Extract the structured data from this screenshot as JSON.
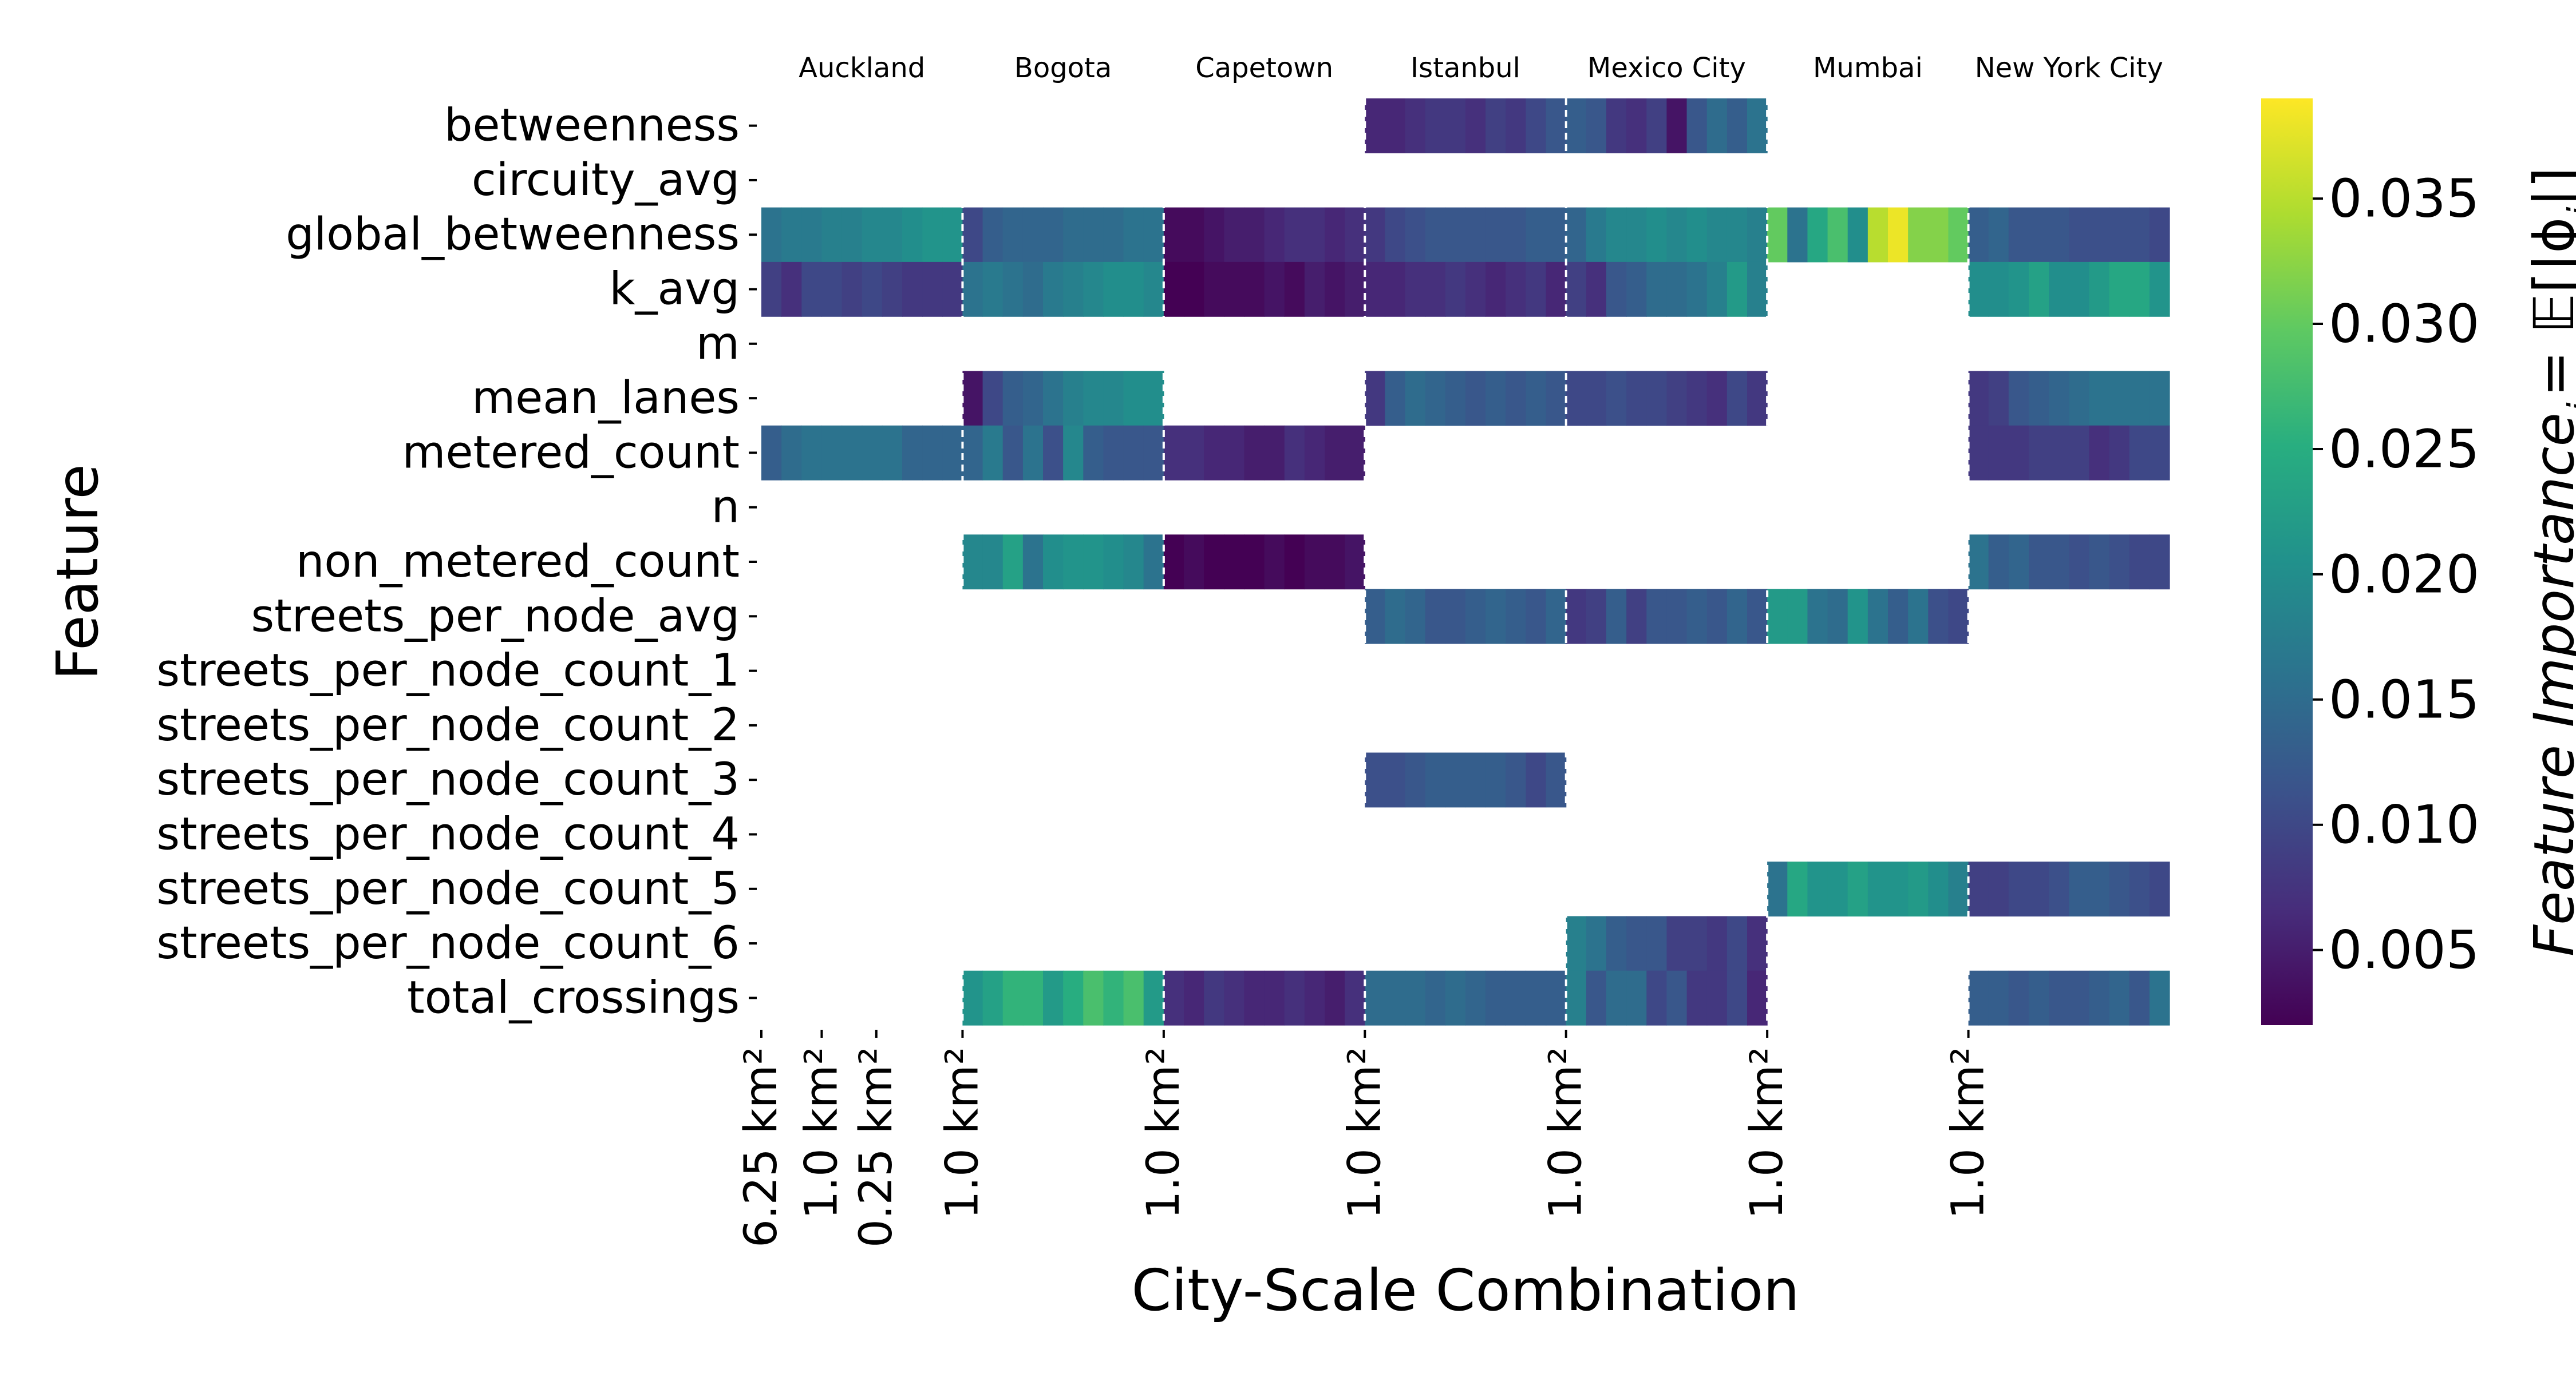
{
  "chart_data": {
    "type": "heatmap",
    "xlabel": "City-Scale Combination",
    "ylabel": "Feature",
    "colorbar_label": "Feature Importance",
    "colorbar_label_sub": "j",
    "colorbar_label_rhs": "= 𝔼[|ϕ",
    "colorbar_label_rhs_sub": "j",
    "colorbar_label_rhs_end": "|]",
    "colormap": "viridis",
    "vmin": 0.002,
    "vmax": 0.039,
    "colorbar_ticks": [
      "0.005",
      "0.010",
      "0.015",
      "0.020",
      "0.025",
      "0.030",
      "0.035"
    ],
    "cities": [
      "Auckland",
      "Bogota",
      "Capetown",
      "Istanbul",
      "Mexico City",
      "Mumbai",
      "New York City"
    ],
    "x_tick_labels": [
      "6.25 km²",
      "1.0 km²",
      "0.25 km²",
      "1.0 km²",
      "1.0 km²",
      "1.0 km²",
      "1.0 km²",
      "1.0 km²",
      "1.0 km²"
    ],
    "features": [
      "betweenness",
      "circuity_avg",
      "global_betweenness",
      "k_avg",
      "m",
      "mean_lanes",
      "metered_count",
      "n",
      "non_metered_count",
      "streets_per_node_avg",
      "streets_per_node_count_1",
      "streets_per_node_count_2",
      "streets_per_node_count_3",
      "streets_per_node_count_4",
      "streets_per_node_count_5",
      "streets_per_node_count_6",
      "total_crossings"
    ],
    "columns_per_city": 10,
    "missing_value": null,
    "values": {
      "betweenness": [
        null,
        null,
        null,
        null,
        null,
        null,
        null,
        null,
        null,
        null,
        null,
        null,
        null,
        null,
        null,
        null,
        null,
        null,
        null,
        null,
        null,
        null,
        null,
        null,
        null,
        null,
        null,
        null,
        null,
        null,
        0.006,
        0.006,
        0.007,
        0.008,
        0.008,
        0.007,
        0.009,
        0.008,
        0.01,
        0.012,
        0.013,
        0.012,
        0.008,
        0.007,
        0.009,
        0.004,
        0.012,
        0.015,
        0.013,
        0.016,
        null,
        null,
        null,
        null,
        null,
        null,
        null,
        null,
        null,
        null,
        null,
        null,
        null,
        null,
        null,
        null,
        null,
        null,
        null,
        null
      ],
      "circuity_avg": [
        null,
        null,
        null,
        null,
        null,
        null,
        null,
        null,
        null,
        null,
        null,
        null,
        null,
        null,
        null,
        null,
        null,
        null,
        null,
        null,
        null,
        null,
        null,
        null,
        null,
        null,
        null,
        null,
        null,
        null,
        null,
        null,
        null,
        null,
        null,
        null,
        null,
        null,
        null,
        null,
        null,
        null,
        null,
        null,
        null,
        null,
        null,
        null,
        null,
        null,
        null,
        null,
        null,
        null,
        null,
        null,
        null,
        null,
        null,
        null,
        null,
        null,
        null,
        null,
        null,
        null,
        null,
        null,
        null,
        null
      ],
      "global_betweenness": [
        0.016,
        0.017,
        0.017,
        0.018,
        0.018,
        0.019,
        0.019,
        0.02,
        0.021,
        0.021,
        0.01,
        0.013,
        0.014,
        0.014,
        0.014,
        0.015,
        0.015,
        0.015,
        0.016,
        0.016,
        0.003,
        0.003,
        0.004,
        0.005,
        0.005,
        0.006,
        0.007,
        0.007,
        0.006,
        0.007,
        0.008,
        0.01,
        0.011,
        0.012,
        0.012,
        0.012,
        0.012,
        0.012,
        0.013,
        0.013,
        0.014,
        0.017,
        0.019,
        0.019,
        0.02,
        0.019,
        0.02,
        0.019,
        0.019,
        0.018,
        0.03,
        0.016,
        0.024,
        0.028,
        0.02,
        0.035,
        0.038,
        0.032,
        0.032,
        0.03,
        0.013,
        0.014,
        0.012,
        0.012,
        0.012,
        0.011,
        0.011,
        0.011,
        0.011,
        0.01
      ],
      "k_avg": [
        0.009,
        0.007,
        0.01,
        0.01,
        0.009,
        0.01,
        0.009,
        0.008,
        0.008,
        0.008,
        0.016,
        0.017,
        0.016,
        0.015,
        0.017,
        0.018,
        0.019,
        0.02,
        0.02,
        0.019,
        0.002,
        0.002,
        0.003,
        0.003,
        0.003,
        0.004,
        0.003,
        0.005,
        0.004,
        0.005,
        0.006,
        0.006,
        0.007,
        0.007,
        0.008,
        0.007,
        0.006,
        0.007,
        0.008,
        0.006,
        0.009,
        0.007,
        0.012,
        0.013,
        0.015,
        0.015,
        0.016,
        0.018,
        0.022,
        0.018,
        null,
        null,
        null,
        null,
        null,
        null,
        null,
        null,
        null,
        null,
        0.02,
        0.02,
        0.021,
        0.023,
        0.02,
        0.02,
        0.022,
        0.024,
        0.024,
        0.021
      ],
      "m": [
        null,
        null,
        null,
        null,
        null,
        null,
        null,
        null,
        null,
        null,
        null,
        null,
        null,
        null,
        null,
        null,
        null,
        null,
        null,
        null,
        null,
        null,
        null,
        null,
        null,
        null,
        null,
        null,
        null,
        null,
        null,
        null,
        null,
        null,
        null,
        null,
        null,
        null,
        null,
        null,
        null,
        null,
        null,
        null,
        null,
        null,
        null,
        null,
        null,
        null,
        null,
        null,
        null,
        null,
        null,
        null,
        null,
        null,
        null,
        null,
        null,
        null,
        null,
        null,
        null,
        null,
        null,
        null,
        null,
        null
      ],
      "mean_lanes": [
        null,
        null,
        null,
        null,
        null,
        null,
        null,
        null,
        null,
        null,
        0.004,
        0.01,
        0.013,
        0.014,
        0.016,
        0.018,
        0.019,
        0.019,
        0.02,
        0.02,
        null,
        null,
        null,
        null,
        null,
        null,
        null,
        null,
        null,
        null,
        0.008,
        0.013,
        0.015,
        0.014,
        0.013,
        0.012,
        0.013,
        0.012,
        0.013,
        0.012,
        0.01,
        0.01,
        0.011,
        0.01,
        0.01,
        0.009,
        0.008,
        0.007,
        0.01,
        0.008,
        null,
        null,
        null,
        null,
        null,
        null,
        null,
        null,
        null,
        null,
        0.008,
        0.009,
        0.012,
        0.013,
        0.014,
        0.015,
        0.016,
        0.016,
        0.016,
        0.016
      ],
      "metered_count": [
        0.013,
        0.015,
        0.016,
        0.016,
        0.016,
        0.016,
        0.016,
        0.014,
        0.014,
        0.014,
        0.014,
        0.017,
        0.012,
        0.016,
        0.011,
        0.019,
        0.013,
        0.012,
        0.012,
        0.012,
        0.007,
        0.007,
        0.006,
        0.006,
        0.005,
        0.005,
        0.007,
        0.006,
        0.005,
        0.005,
        null,
        null,
        null,
        null,
        null,
        null,
        null,
        null,
        null,
        null,
        null,
        null,
        null,
        null,
        null,
        null,
        null,
        null,
        null,
        null,
        null,
        null,
        null,
        null,
        null,
        null,
        null,
        null,
        null,
        null,
        0.008,
        0.008,
        0.008,
        0.009,
        0.009,
        0.009,
        0.007,
        0.008,
        0.01,
        0.01
      ],
      "n": [
        null,
        null,
        null,
        null,
        null,
        null,
        null,
        null,
        null,
        null,
        null,
        null,
        null,
        null,
        null,
        null,
        null,
        null,
        null,
        null,
        null,
        null,
        null,
        null,
        null,
        null,
        null,
        null,
        null,
        null,
        null,
        null,
        null,
        null,
        null,
        null,
        null,
        null,
        null,
        null,
        null,
        null,
        null,
        null,
        null,
        null,
        null,
        null,
        null,
        null,
        null,
        null,
        null,
        null,
        null,
        null,
        null,
        null,
        null,
        null,
        null,
        null,
        null,
        null,
        null,
        null,
        null,
        null,
        null,
        null
      ],
      "non_metered_count": [
        null,
        null,
        null,
        null,
        null,
        null,
        null,
        null,
        null,
        null,
        0.019,
        0.019,
        0.023,
        0.016,
        0.02,
        0.021,
        0.021,
        0.02,
        0.019,
        0.016,
        0.002,
        0.003,
        0.002,
        0.002,
        0.002,
        0.003,
        0.002,
        0.003,
        0.003,
        0.004,
        null,
        null,
        null,
        null,
        null,
        null,
        null,
        null,
        null,
        null,
        null,
        null,
        null,
        null,
        null,
        null,
        null,
        null,
        null,
        null,
        null,
        null,
        null,
        null,
        null,
        null,
        null,
        null,
        null,
        null,
        0.016,
        0.013,
        0.014,
        0.012,
        0.012,
        0.011,
        0.012,
        0.011,
        0.01,
        0.01
      ],
      "streets_per_node_avg": [
        null,
        null,
        null,
        null,
        null,
        null,
        null,
        null,
        null,
        null,
        null,
        null,
        null,
        null,
        null,
        null,
        null,
        null,
        null,
        null,
        null,
        null,
        null,
        null,
        null,
        null,
        null,
        null,
        null,
        null,
        0.013,
        0.015,
        0.014,
        0.012,
        0.012,
        0.013,
        0.014,
        0.013,
        0.012,
        0.014,
        0.008,
        0.009,
        0.013,
        0.009,
        0.012,
        0.012,
        0.013,
        0.012,
        0.014,
        0.012,
        0.022,
        0.022,
        0.016,
        0.015,
        0.021,
        0.016,
        0.013,
        0.016,
        0.011,
        0.01,
        null,
        null,
        null,
        null,
        null,
        null,
        null,
        null,
        null,
        null
      ],
      "streets_per_node_count_1": [
        null,
        null,
        null,
        null,
        null,
        null,
        null,
        null,
        null,
        null,
        null,
        null,
        null,
        null,
        null,
        null,
        null,
        null,
        null,
        null,
        null,
        null,
        null,
        null,
        null,
        null,
        null,
        null,
        null,
        null,
        null,
        null,
        null,
        null,
        null,
        null,
        null,
        null,
        null,
        null,
        null,
        null,
        null,
        null,
        null,
        null,
        null,
        null,
        null,
        null,
        null,
        null,
        null,
        null,
        null,
        null,
        null,
        null,
        null,
        null,
        null,
        null,
        null,
        null,
        null,
        null,
        null,
        null,
        null,
        null
      ],
      "streets_per_node_count_2": [
        null,
        null,
        null,
        null,
        null,
        null,
        null,
        null,
        null,
        null,
        null,
        null,
        null,
        null,
        null,
        null,
        null,
        null,
        null,
        null,
        null,
        null,
        null,
        null,
        null,
        null,
        null,
        null,
        null,
        null,
        null,
        null,
        null,
        null,
        null,
        null,
        null,
        null,
        null,
        null,
        null,
        null,
        null,
        null,
        null,
        null,
        null,
        null,
        null,
        null,
        null,
        null,
        null,
        null,
        null,
        null,
        null,
        null,
        null,
        null,
        null,
        null,
        null,
        null,
        null,
        null,
        null,
        null,
        null,
        null
      ],
      "streets_per_node_count_3": [
        null,
        null,
        null,
        null,
        null,
        null,
        null,
        null,
        null,
        null,
        null,
        null,
        null,
        null,
        null,
        null,
        null,
        null,
        null,
        null,
        null,
        null,
        null,
        null,
        null,
        null,
        null,
        null,
        null,
        null,
        0.011,
        0.011,
        0.012,
        0.013,
        0.013,
        0.013,
        0.013,
        0.012,
        0.01,
        0.012,
        null,
        null,
        null,
        null,
        null,
        null,
        null,
        null,
        null,
        null,
        null,
        null,
        null,
        null,
        null,
        null,
        null,
        null,
        null,
        null,
        null,
        null,
        null,
        null,
        null,
        null,
        null,
        null,
        null,
        null
      ],
      "streets_per_node_count_4": [
        null,
        null,
        null,
        null,
        null,
        null,
        null,
        null,
        null,
        null,
        null,
        null,
        null,
        null,
        null,
        null,
        null,
        null,
        null,
        null,
        null,
        null,
        null,
        null,
        null,
        null,
        null,
        null,
        null,
        null,
        null,
        null,
        null,
        null,
        null,
        null,
        null,
        null,
        null,
        null,
        null,
        null,
        null,
        null,
        null,
        null,
        null,
        null,
        null,
        null,
        null,
        null,
        null,
        null,
        null,
        null,
        null,
        null,
        null,
        null,
        null,
        null,
        null,
        null,
        null,
        null,
        null,
        null,
        null,
        null
      ],
      "streets_per_node_count_5": [
        null,
        null,
        null,
        null,
        null,
        null,
        null,
        null,
        null,
        null,
        null,
        null,
        null,
        null,
        null,
        null,
        null,
        null,
        null,
        null,
        null,
        null,
        null,
        null,
        null,
        null,
        null,
        null,
        null,
        null,
        null,
        null,
        null,
        null,
        null,
        null,
        null,
        null,
        null,
        null,
        null,
        null,
        null,
        null,
        null,
        null,
        null,
        null,
        null,
        null,
        0.016,
        0.024,
        0.021,
        0.021,
        0.023,
        0.021,
        0.021,
        0.022,
        0.02,
        0.018,
        0.009,
        0.009,
        0.01,
        0.01,
        0.011,
        0.013,
        0.013,
        0.012,
        0.011,
        0.01
      ],
      "streets_per_node_count_6": [
        null,
        null,
        null,
        null,
        null,
        null,
        null,
        null,
        null,
        null,
        null,
        null,
        null,
        null,
        null,
        null,
        null,
        null,
        null,
        null,
        null,
        null,
        null,
        null,
        null,
        null,
        null,
        null,
        null,
        null,
        null,
        null,
        null,
        null,
        null,
        null,
        null,
        null,
        null,
        null,
        0.018,
        0.016,
        0.013,
        0.012,
        0.012,
        0.009,
        0.009,
        0.008,
        0.01,
        0.007,
        null,
        null,
        null,
        null,
        null,
        null,
        null,
        null,
        null,
        null,
        null,
        null,
        null,
        null,
        null,
        null,
        null,
        null,
        null,
        null
      ],
      "total_crossings": [
        null,
        null,
        null,
        null,
        null,
        null,
        null,
        null,
        null,
        null,
        0.021,
        0.023,
        0.026,
        0.026,
        0.022,
        0.025,
        0.028,
        0.026,
        0.028,
        0.022,
        0.007,
        0.006,
        0.008,
        0.007,
        0.006,
        0.006,
        0.007,
        0.006,
        0.005,
        0.007,
        0.015,
        0.015,
        0.015,
        0.014,
        0.015,
        0.014,
        0.013,
        0.013,
        0.013,
        0.013,
        0.018,
        0.012,
        0.015,
        0.015,
        0.01,
        0.012,
        0.008,
        0.008,
        0.01,
        0.006,
        null,
        null,
        null,
        null,
        null,
        null,
        null,
        null,
        null,
        null,
        0.013,
        0.013,
        0.012,
        0.013,
        0.012,
        0.012,
        0.013,
        0.014,
        0.012,
        0.016
      ]
    }
  }
}
